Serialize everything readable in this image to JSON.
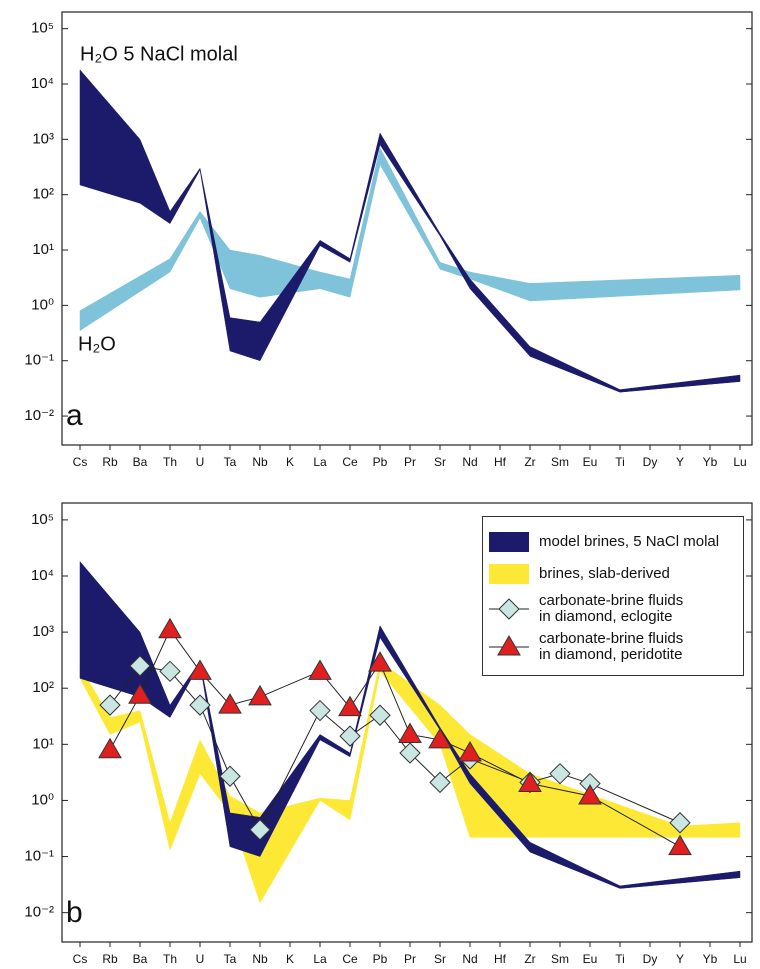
{
  "chart_data": [
    {
      "type": "band-line",
      "panel_label": "a",
      "log_scale": true,
      "legend": "none",
      "categories": [
        "Cs",
        "Rb",
        "Ba",
        "Th",
        "U",
        "Ta",
        "Nb",
        "K",
        "La",
        "Ce",
        "Pb",
        "Pr",
        "Sr",
        "Nd",
        "Hf",
        "Zr",
        "Sm",
        "Eu",
        "Ti",
        "Dy",
        "Y",
        "Yb",
        "Lu"
      ],
      "ylim": [
        0.003,
        200000
      ],
      "yticks": [
        {
          "value": 0.01,
          "label": "10⁻²"
        },
        {
          "value": 0.1,
          "label": "10⁻¹"
        },
        {
          "value": 1,
          "label": "10⁰"
        },
        {
          "value": 10,
          "label": "10¹"
        },
        {
          "value": 100,
          "label": "10²"
        },
        {
          "value": 1000,
          "label": "10³"
        },
        {
          "value": 10000,
          "label": "10⁴"
        },
        {
          "value": 100000,
          "label": "10⁵"
        }
      ],
      "series": [
        {
          "name": "H₂O 5 NaCl molal",
          "type": "band",
          "color": "#1c1b6b",
          "x": [
            "Cs",
            "Ba",
            "Th",
            "U",
            "Ta",
            "Nb",
            "La",
            "Ce",
            "Pb",
            "Sr",
            "Nd",
            "Zr",
            "Ti",
            "Lu"
          ],
          "upper": [
            18000,
            1000,
            50,
            300,
            0.6,
            0.5,
            15,
            7,
            1300,
            20,
            3,
            0.18,
            0.03,
            0.055
          ],
          "lower": [
            150,
            70,
            30,
            280,
            0.15,
            0.1,
            12,
            6,
            800,
            18,
            2,
            0.12,
            0.027,
            0.042
          ]
        },
        {
          "name": "H₂O",
          "type": "band",
          "color": "#7ec3da",
          "x": [
            "Cs",
            "Th",
            "U",
            "Ta",
            "Nb",
            "La",
            "Ce",
            "Pb",
            "Sr",
            "Nd",
            "Zr",
            "Lu"
          ],
          "upper": [
            0.8,
            7,
            50,
            10,
            8,
            4,
            3,
            700,
            6,
            4,
            2.5,
            3.5
          ],
          "lower": [
            0.35,
            4,
            38,
            2,
            1.4,
            2,
            1.4,
            350,
            4.5,
            3,
            1.2,
            1.9
          ]
        }
      ]
    },
    {
      "type": "band-line",
      "panel_label": "b",
      "log_scale": true,
      "legend": "upper right",
      "categories": [
        "Cs",
        "Rb",
        "Ba",
        "Th",
        "U",
        "Ta",
        "Nb",
        "K",
        "La",
        "Ce",
        "Pb",
        "Pr",
        "Sr",
        "Nd",
        "Hf",
        "Zr",
        "Sm",
        "Eu",
        "Ti",
        "Dy",
        "Y",
        "Yb",
        "Lu"
      ],
      "ylim": [
        0.003,
        200000
      ],
      "yticks": [
        {
          "value": 0.01,
          "label": "10⁻²"
        },
        {
          "value": 0.1,
          "label": "10⁻¹"
        },
        {
          "value": 1,
          "label": "10⁰"
        },
        {
          "value": 10,
          "label": "10¹"
        },
        {
          "value": 100,
          "label": "10²"
        },
        {
          "value": 1000,
          "label": "10³"
        },
        {
          "value": 10000,
          "label": "10⁴"
        },
        {
          "value": 100000,
          "label": "10⁵"
        }
      ],
      "series": [
        {
          "name": "model brines, 5 NaCl molal",
          "type": "band",
          "color": "#1c1b6b",
          "x": [
            "Cs",
            "Ba",
            "Th",
            "U",
            "Ta",
            "Nb",
            "La",
            "Ce",
            "Pb",
            "Sr",
            "Nd",
            "Zr",
            "Ti",
            "Lu"
          ],
          "upper": [
            18000,
            1000,
            50,
            300,
            0.6,
            0.5,
            15,
            7,
            1300,
            20,
            3,
            0.18,
            0.03,
            0.055
          ],
          "lower": [
            150,
            70,
            30,
            280,
            0.15,
            0.1,
            12,
            6,
            800,
            18,
            2,
            0.12,
            0.027,
            0.042
          ]
        },
        {
          "name": "brines, slab-derived",
          "type": "band",
          "color": "#fde935",
          "x": [
            "Cs",
            "Rb",
            "Ba",
            "Th",
            "U",
            "Ta",
            "Nb",
            "La",
            "Ce",
            "Pb",
            "Sr",
            "Nd",
            "Zr",
            "Y",
            "Lu"
          ],
          "upper": [
            250,
            30,
            40,
            0.4,
            12,
            1.2,
            0.6,
            1.1,
            1.0,
            300,
            50,
            15,
            3,
            0.35,
            0.4
          ],
          "lower": [
            150,
            15,
            25,
            0.13,
            3,
            0.6,
            0.015,
            1.0,
            0.45,
            200,
            10,
            0.22,
            0.22,
            0.22,
            0.22
          ]
        },
        {
          "name": "carbonate-brine fluids\nin diamond, eclogite",
          "type": "line",
          "marker": "diamond",
          "color": "#c9e6e3",
          "x": [
            "Rb",
            "Ba",
            "Th",
            "U",
            "Ta",
            "Nb",
            "La",
            "Ce",
            "Pb",
            "Pr",
            "Sr",
            "Nd",
            "Zr",
            "Sm",
            "Eu",
            "Y"
          ],
          "values": [
            50,
            250,
            200,
            50,
            2.7,
            0.3,
            40,
            14,
            33,
            7,
            2.1,
            5.5,
            2.1,
            3,
            2,
            0.4
          ]
        },
        {
          "name": "carbonate-brine fluids\nin diamond, peridotite",
          "type": "line",
          "marker": "triangle",
          "color": "#e02020",
          "x": [
            "Rb",
            "Ba",
            "Th",
            "U",
            "Ta",
            "Nb",
            "La",
            "Ce",
            "Pb",
            "Pr",
            "Sr",
            "Nd",
            "Zr",
            "Eu",
            "Y"
          ],
          "values": [
            8,
            75,
            1100,
            200,
            50,
            70,
            200,
            45,
            280,
            15,
            12,
            7,
            2,
            1.2,
            0.15
          ]
        }
      ]
    }
  ]
}
